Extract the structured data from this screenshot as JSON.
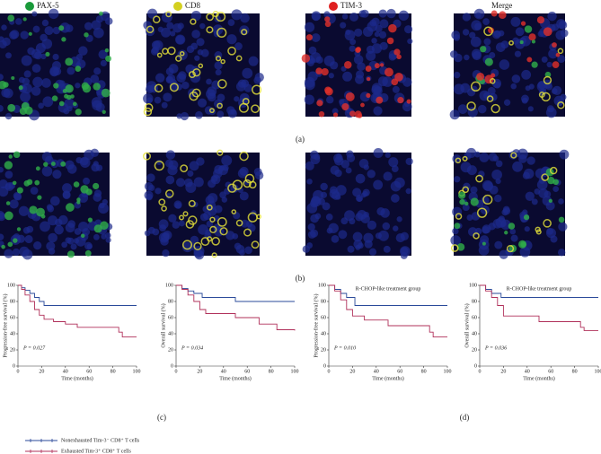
{
  "channels": [
    "PAX-5",
    "CD8",
    "TIM-3",
    "Merge"
  ],
  "channel_colors": [
    "#1a9a3a",
    "#d4d020",
    "#e02020",
    null
  ],
  "panel_labels": [
    "(a)",
    "(b)",
    "(c)",
    "(d)"
  ],
  "legend": [
    {
      "name": "Nonexhausted Tim-3⁻ CD8⁺ T cells",
      "color": "#2a4a9a"
    },
    {
      "name": "Exhausted Tim-3⁺ CD8⁺ T cells",
      "color": "#b0305a"
    }
  ],
  "chart_data": [
    {
      "type": "km",
      "ylabel": "Progression-free survival (%)",
      "xlabel": "Time (months)",
      "annotation": "P = 0.027",
      "xlim": [
        0,
        100
      ],
      "ylim": [
        0,
        100
      ],
      "xticks": [
        0,
        20,
        40,
        60,
        80,
        100
      ],
      "yticks": [
        0,
        20,
        40,
        60,
        80,
        100
      ],
      "series": [
        {
          "color": "#2a4a9a",
          "x": [
            0,
            3,
            6,
            10,
            14,
            18,
            22,
            100
          ],
          "values": [
            100,
            97,
            94,
            90,
            85,
            80,
            75,
            75
          ]
        },
        {
          "color": "#b0305a",
          "x": [
            0,
            3,
            6,
            10,
            14,
            18,
            22,
            30,
            40,
            50,
            85,
            88,
            100
          ],
          "values": [
            100,
            95,
            88,
            80,
            70,
            63,
            58,
            55,
            52,
            48,
            42,
            36,
            36
          ]
        }
      ]
    },
    {
      "type": "km",
      "ylabel": "Overall survival (%)",
      "xlabel": "Time (months)",
      "annotation": "P = 0.034",
      "xlim": [
        0,
        100
      ],
      "ylim": [
        0,
        100
      ],
      "xticks": [
        0,
        20,
        40,
        60,
        80,
        100
      ],
      "yticks": [
        0,
        20,
        40,
        60,
        80,
        100
      ],
      "series": [
        {
          "color": "#2a4a9a",
          "x": [
            0,
            5,
            10,
            15,
            22,
            50,
            100
          ],
          "values": [
            100,
            96,
            93,
            90,
            85,
            80,
            80
          ]
        },
        {
          "color": "#b0305a",
          "x": [
            0,
            5,
            10,
            15,
            20,
            25,
            50,
            70,
            85,
            100
          ],
          "values": [
            100,
            95,
            88,
            80,
            70,
            65,
            60,
            52,
            45,
            44
          ]
        }
      ]
    },
    {
      "type": "km",
      "title": "R-CHOP-like treatment group",
      "ylabel": "Progression-free survival (%)",
      "xlabel": "Time (months)",
      "annotation": "P = 0.010",
      "xlim": [
        0,
        100
      ],
      "ylim": [
        0,
        100
      ],
      "xticks": [
        0,
        20,
        40,
        60,
        80,
        100
      ],
      "yticks": [
        0,
        20,
        40,
        60,
        80,
        100
      ],
      "series": [
        {
          "color": "#2a4a9a",
          "x": [
            0,
            5,
            10,
            15,
            22,
            100
          ],
          "values": [
            100,
            95,
            90,
            85,
            75,
            75
          ]
        },
        {
          "color": "#b0305a",
          "x": [
            0,
            5,
            10,
            15,
            20,
            30,
            50,
            85,
            88,
            100
          ],
          "values": [
            100,
            93,
            82,
            70,
            62,
            57,
            50,
            42,
            36,
            36
          ]
        }
      ]
    },
    {
      "type": "km",
      "title": "R-CHOP-like treatment group",
      "ylabel": "Overall survival (%)",
      "xlabel": "Time (months)",
      "annotation": "P = 0.036",
      "xlim": [
        0,
        100
      ],
      "ylim": [
        0,
        100
      ],
      "xticks": [
        0,
        20,
        40,
        60,
        80,
        100
      ],
      "yticks": [
        0,
        20,
        40,
        60,
        80,
        100
      ],
      "series": [
        {
          "color": "#2a4a9a",
          "x": [
            0,
            5,
            10,
            18,
            100
          ],
          "values": [
            100,
            95,
            90,
            85,
            85
          ]
        },
        {
          "color": "#b0305a",
          "x": [
            0,
            5,
            10,
            15,
            20,
            50,
            85,
            88,
            100
          ],
          "values": [
            100,
            93,
            85,
            75,
            62,
            55,
            48,
            44,
            44
          ]
        }
      ]
    }
  ]
}
